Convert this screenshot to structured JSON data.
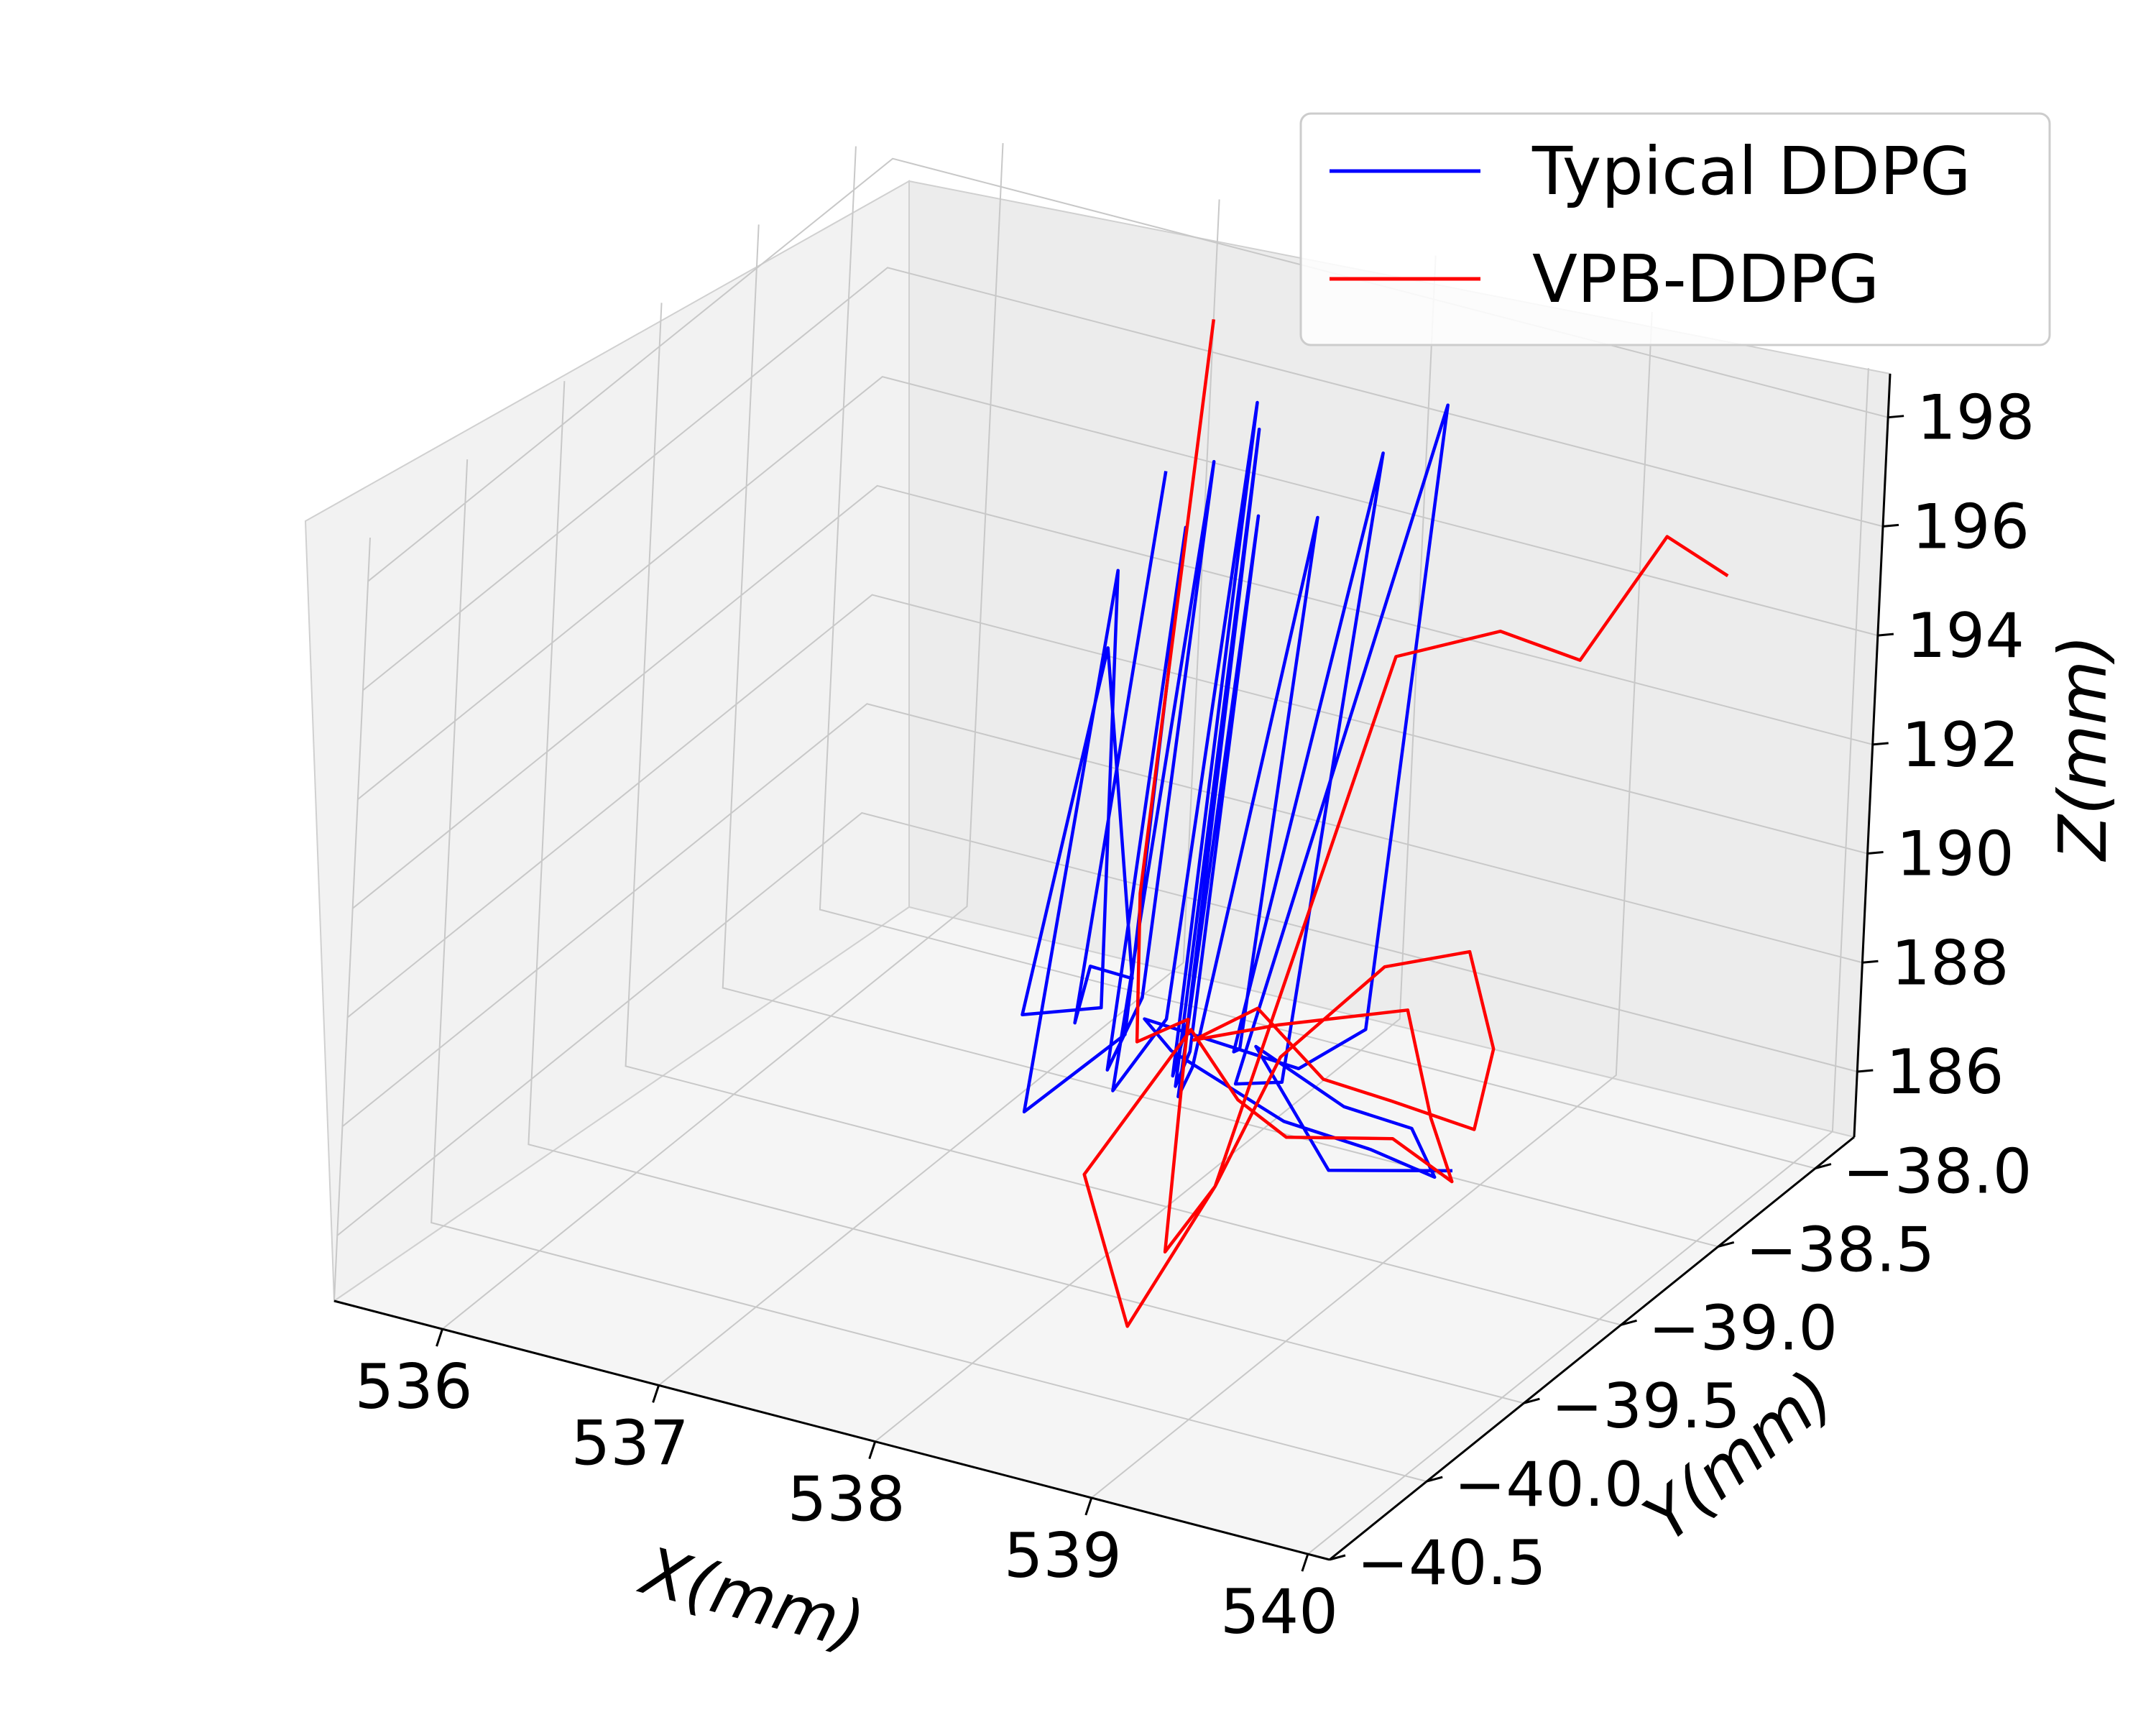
{
  "chart_data": {
    "type": "line",
    "projection": "3d",
    "title": "",
    "xlabel": "X(mm)",
    "ylabel": "Y(mm)",
    "zlabel": "Z(mm)",
    "xlim": [
      535.5,
      540.1
    ],
    "ylim": [
      -40.5,
      -37.8
    ],
    "zlim": [
      184.8,
      198.8
    ],
    "xticks": [
      "536",
      "537",
      "538",
      "539",
      "540"
    ],
    "yticks": [
      "−40.5",
      "−40.0",
      "−39.5",
      "−39.0",
      "−38.5",
      "−38.0"
    ],
    "zticks": [
      "186",
      "188",
      "190",
      "192",
      "194",
      "196",
      "198"
    ],
    "grid": true,
    "legend_position": "top-right",
    "series": [
      {
        "name": "Typical DDPG",
        "color": "#0000ff",
        "points": [
          [
            536.9,
            -37.9,
            194.0
          ],
          [
            537.2,
            -38.6,
            186.2
          ],
          [
            537.6,
            -39.0,
            188.8
          ],
          [
            538.05,
            -39.3,
            189.9
          ],
          [
            537.1,
            -38.4,
            192.4
          ],
          [
            537.3,
            -39.0,
            187.6
          ],
          [
            538.0,
            -39.4,
            189.6
          ],
          [
            537.3,
            -38.6,
            194.6
          ],
          [
            537.5,
            -39.2,
            186.6
          ],
          [
            538.2,
            -39.5,
            189.6
          ],
          [
            537.6,
            -38.6,
            195.7
          ],
          [
            537.7,
            -39.0,
            187.0
          ],
          [
            538.1,
            -39.3,
            189.6
          ],
          [
            537.8,
            -38.7,
            197.4
          ],
          [
            537.9,
            -39.2,
            187.4
          ],
          [
            538.3,
            -39.4,
            189.7
          ],
          [
            537.9,
            -38.6,
            198.3
          ],
          [
            538.0,
            -39.0,
            187.2
          ],
          [
            538.4,
            -39.4,
            189.8
          ],
          [
            538.0,
            -38.7,
            198.2
          ],
          [
            538.1,
            -39.1,
            187.4
          ],
          [
            538.5,
            -39.5,
            189.6
          ],
          [
            538.1,
            -38.8,
            197.0
          ],
          [
            538.2,
            -39.2,
            187.6
          ],
          [
            538.6,
            -39.6,
            189.7
          ],
          [
            538.2,
            -38.6,
            196.5
          ],
          [
            538.3,
            -39.0,
            188.0
          ],
          [
            538.7,
            -39.5,
            189.8
          ],
          [
            538.4,
            -38.5,
            197.6
          ],
          [
            538.5,
            -39.0,
            187.6
          ],
          [
            538.8,
            -39.6,
            189.6
          ],
          [
            538.6,
            -38.4,
            198.4
          ],
          [
            538.7,
            -38.8,
            188.2
          ],
          [
            539.0,
            -39.5,
            189.8
          ],
          [
            538.2,
            -39.4,
            189.6
          ],
          [
            538.5,
            -39.6,
            189.9
          ],
          [
            539.2,
            -39.8,
            189.9
          ],
          [
            539.6,
            -39.8,
            189.8
          ],
          [
            539.9,
            -39.8,
            189.6
          ],
          [
            539.7,
            -39.7,
            190.0
          ],
          [
            539.3,
            -39.6,
            189.7
          ],
          [
            538.8,
            -39.5,
            190.0
          ],
          [
            539.5,
            -39.9,
            189.6
          ],
          [
            539.98,
            -39.8,
            189.8
          ]
        ]
      },
      {
        "name": "VPB-DDPG",
        "color": "#ff0000",
        "points": [
          [
            537.0,
            -37.8,
            196.6
          ],
          [
            537.3,
            -38.4,
            188.1
          ],
          [
            538.0,
            -39.2,
            188.4
          ],
          [
            538.4,
            -39.4,
            189.8
          ],
          [
            538.6,
            -39.7,
            186.6
          ],
          [
            538.9,
            -39.8,
            188.4
          ],
          [
            539.0,
            -39.6,
            190.3
          ],
          [
            539.2,
            -39.3,
            191.3
          ],
          [
            539.5,
            -39.2,
            191.6
          ],
          [
            539.8,
            -39.4,
            190.7
          ],
          [
            539.9,
            -39.6,
            189.9
          ],
          [
            539.6,
            -39.7,
            190.4
          ],
          [
            539.2,
            -39.6,
            190.1
          ],
          [
            538.8,
            -39.5,
            190.7
          ],
          [
            538.6,
            -39.6,
            190.2
          ],
          [
            538.9,
            -39.5,
            190.5
          ],
          [
            539.4,
            -39.4,
            191.0
          ],
          [
            539.7,
            -39.6,
            189.9
          ],
          [
            539.98,
            -39.8,
            189.6
          ],
          [
            539.7,
            -39.8,
            190.1
          ],
          [
            539.3,
            -39.9,
            190.0
          ],
          [
            538.9,
            -39.7,
            189.7
          ],
          [
            538.5,
            -39.5,
            190.0
          ],
          [
            538.3,
            -39.8,
            188.0
          ],
          [
            538.7,
            -40.0,
            186.2
          ],
          [
            538.9,
            -39.8,
            188.4
          ],
          [
            539.1,
            -39.2,
            196.6
          ],
          [
            539.4,
            -39.0,
            196.8
          ],
          [
            539.6,
            -38.8,
            195.9
          ],
          [
            539.8,
            -38.6,
            197.8
          ],
          [
            540.0,
            -38.5,
            197.0
          ]
        ]
      }
    ]
  }
}
